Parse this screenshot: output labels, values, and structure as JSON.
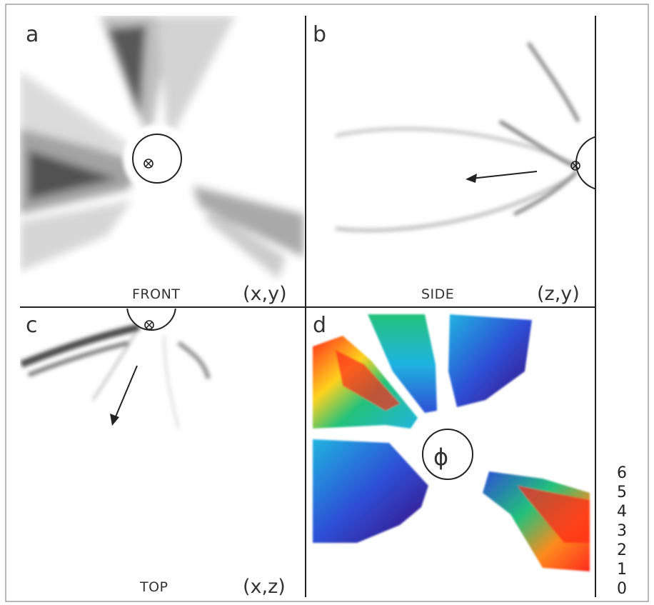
{
  "figure": {
    "panels": [
      {
        "letter": "a",
        "view": "FRONT",
        "coords": "(x,y)"
      },
      {
        "letter": "b",
        "view": "SIDE",
        "coords": "(z,y)"
      },
      {
        "letter": "c",
        "view": "TOP",
        "coords": "(x,z)"
      },
      {
        "letter": "d",
        "view": "",
        "coords": ""
      }
    ],
    "symbols": {
      "into_page": "⊗",
      "phi": "ϕ"
    },
    "colorbar": {
      "ticks": [
        "6",
        "5",
        "4",
        "3",
        "2",
        "1",
        "0"
      ],
      "colors": [
        "#000000",
        "#3a0a7a",
        "#2d4fd6",
        "#1fb4e0",
        "#22c27a",
        "#a8e020",
        "#ffd21f",
        "#ff8a1a",
        "#ff2a1a"
      ]
    }
  }
}
